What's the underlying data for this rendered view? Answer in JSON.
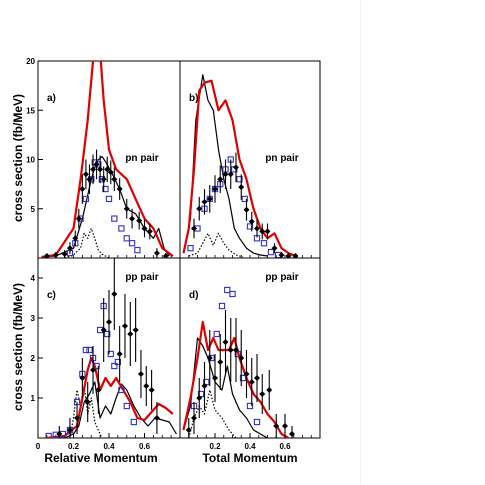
{
  "figure": {
    "y_axis_label": "cross section  (fb/MeV)",
    "x_axis_left_label": "Relative Momentum",
    "x_axis_right_label": "Total Momentum"
  },
  "chart_data": [
    {
      "id": "a",
      "type": "line",
      "panel_label": "a)",
      "annotation": "pn pair",
      "xlim": [
        0,
        0.8
      ],
      "ylim": [
        0,
        20
      ],
      "y_ticks": [
        5,
        10,
        15,
        20
      ],
      "x_ticks": [],
      "curves": {
        "red": {
          "x": [
            0.02,
            0.1,
            0.2,
            0.24,
            0.28,
            0.31,
            0.33,
            0.35,
            0.37,
            0.4,
            0.44,
            0.5,
            0.55,
            0.6,
            0.65,
            0.7,
            0.76
          ],
          "y": [
            0.1,
            0.3,
            3,
            8,
            14,
            20,
            21,
            21,
            16,
            11,
            9,
            8,
            6,
            4,
            3,
            1,
            0.2
          ]
        },
        "black": {
          "x": [
            0.02,
            0.1,
            0.2,
            0.25,
            0.3,
            0.33,
            0.36,
            0.38,
            0.42,
            0.46,
            0.5,
            0.55,
            0.6,
            0.65,
            0.68,
            0.71,
            0.74
          ],
          "y": [
            0.1,
            0.2,
            1,
            4,
            8,
            9.8,
            10.3,
            9.8,
            8.5,
            7,
            5,
            4.5,
            3,
            2,
            3,
            1,
            0.2
          ]
        },
        "dotted": {
          "x": [
            0.15,
            0.2,
            0.24,
            0.26,
            0.28,
            0.3,
            0.32,
            0.34,
            0.36,
            0.4
          ],
          "y": [
            0,
            0.3,
            1,
            2.5,
            2,
            3,
            2,
            0.8,
            0.4,
            0
          ]
        }
      },
      "filled_points": {
        "x": [
          0.05,
          0.1,
          0.15,
          0.18,
          0.21,
          0.23,
          0.25,
          0.27,
          0.29,
          0.31,
          0.33,
          0.35,
          0.37,
          0.39,
          0.41,
          0.43,
          0.46,
          0.5,
          0.53,
          0.57,
          0.6,
          0.63,
          0.67,
          0.72
        ],
        "y": [
          0.2,
          0.3,
          0.4,
          1,
          2,
          4,
          7,
          8.5,
          8,
          9,
          9.5,
          9,
          8,
          9,
          8.7,
          8,
          7,
          5,
          4,
          3.8,
          3,
          2.7,
          0.5,
          0.2
        ],
        "err": [
          0.2,
          0.3,
          0.4,
          0.6,
          0.8,
          1,
          1.5,
          1.5,
          1.5,
          1.5,
          1.5,
          1.4,
          1.3,
          1.3,
          1.2,
          1.2,
          1.1,
          1,
          1,
          0.9,
          0.9,
          0.8,
          0.5,
          0.3
        ]
      },
      "open_points": {
        "x": [
          0.18,
          0.21,
          0.24,
          0.27,
          0.3,
          0.32,
          0.34,
          0.36,
          0.38,
          0.4,
          0.43,
          0.47,
          0.5,
          0.53,
          0.56
        ],
        "y": [
          0.5,
          1.5,
          4,
          6,
          8,
          9.7,
          9.5,
          8,
          7,
          6,
          4,
          3,
          2,
          1.5,
          0.8
        ]
      }
    },
    {
      "id": "b",
      "type": "line",
      "panel_label": "b)",
      "annotation": "pn pair",
      "xlim": [
        0,
        0.8
      ],
      "ylim": [
        0,
        20
      ],
      "y_ticks": [],
      "x_ticks": [],
      "curves": {
        "red": {
          "x": [
            0.02,
            0.05,
            0.08,
            0.11,
            0.14,
            0.18,
            0.22,
            0.26,
            0.3,
            0.34,
            0.38,
            0.42,
            0.46,
            0.5,
            0.54,
            0.58,
            0.62,
            0.66
          ],
          "y": [
            0.5,
            3,
            9,
            17,
            17.8,
            18,
            15,
            16,
            14,
            10,
            8,
            5,
            3,
            2,
            2.5,
            1,
            0.5,
            0.2
          ]
        },
        "black": {
          "x": [
            0.02,
            0.06,
            0.09,
            0.13,
            0.16,
            0.19,
            0.22,
            0.25,
            0.28,
            0.31,
            0.34,
            0.38,
            0.42,
            0.46,
            0.5
          ],
          "y": [
            0.5,
            4,
            14,
            18.6,
            16,
            15,
            11,
            8,
            6,
            3,
            2,
            1,
            0.5,
            0.3,
            0.2
          ]
        },
        "dotted": {
          "x": [
            0.05,
            0.1,
            0.13,
            0.16,
            0.19,
            0.22,
            0.25,
            0.28,
            0.32,
            0.36
          ],
          "y": [
            0.2,
            0.5,
            1.5,
            2.5,
            1.3,
            2.5,
            1.5,
            0.8,
            0.3,
            0.1
          ]
        }
      },
      "filled_points": {
        "x": [
          0.08,
          0.11,
          0.14,
          0.17,
          0.2,
          0.23,
          0.26,
          0.29,
          0.32,
          0.35,
          0.38,
          0.41,
          0.44,
          0.47,
          0.5,
          0.54,
          0.58,
          0.62,
          0.66
        ],
        "y": [
          3,
          5,
          5.7,
          6,
          7,
          8,
          8.5,
          8.5,
          9.2,
          7.2,
          4.9,
          3.7,
          3,
          2.7,
          2.7,
          1,
          0.3,
          0.2,
          0.2
        ],
        "err": [
          1,
          1.2,
          1.3,
          1.4,
          1.4,
          1.4,
          1.5,
          1.5,
          1.5,
          1.3,
          1.1,
          1,
          0.9,
          0.8,
          0.8,
          0.5,
          0.3,
          0.2,
          0.2
        ]
      },
      "open_points": {
        "x": [
          0.06,
          0.1,
          0.14,
          0.17,
          0.2,
          0.23,
          0.26,
          0.29,
          0.31,
          0.34,
          0.37,
          0.4,
          0.44,
          0.48,
          0.52,
          0.56
        ],
        "y": [
          1,
          3,
          5,
          6,
          7,
          7.5,
          9,
          10,
          9,
          8,
          6,
          3.2,
          2,
          1.5,
          0.6,
          0.3
        ]
      }
    },
    {
      "id": "c",
      "type": "line",
      "panel_label": "c)",
      "annotation": "pp pair",
      "xlim": [
        0,
        0.8
      ],
      "ylim": [
        0,
        4.5
      ],
      "y_ticks": [
        1,
        2,
        3,
        4
      ],
      "x_ticks": [
        0,
        0.2,
        0.4,
        0.6
      ],
      "curves": {
        "red": {
          "x": [
            0.05,
            0.15,
            0.22,
            0.25,
            0.28,
            0.3,
            0.32,
            0.35,
            0.38,
            0.41,
            0.44,
            0.48,
            0.52,
            0.56,
            0.6,
            0.64,
            0.68,
            0.72,
            0.76
          ],
          "y": [
            0,
            0.05,
            0.3,
            1,
            1.7,
            2,
            1.8,
            1.2,
            1.5,
            1.3,
            1.5,
            1.2,
            0.9,
            0.5,
            0.45,
            0.65,
            0.85,
            0.75,
            0.6
          ]
        },
        "black": {
          "x": [
            0.15,
            0.2,
            0.23,
            0.26,
            0.29,
            0.32,
            0.35,
            0.38,
            0.41,
            0.44,
            0.47,
            0.5,
            0.54,
            0.58,
            0.62,
            0.66,
            0.7,
            0.74,
            0.78
          ],
          "y": [
            0,
            0.1,
            0.3,
            0.9,
            1.1,
            1.4,
            0.5,
            0.8,
            0.6,
            1,
            1.35,
            1.2,
            0.8,
            0.5,
            0.3,
            0.5,
            0.45,
            0.4,
            0.1
          ]
        },
        "dotted": {
          "x": [
            0.18,
            0.2,
            0.22,
            0.24,
            0.26,
            0.28,
            0.3,
            0.32,
            0.34,
            0.36
          ],
          "y": [
            0,
            0.5,
            1.2,
            0.8,
            1.3,
            0.6,
            1,
            0.4,
            0.2,
            0
          ]
        }
      },
      "filled_points": {
        "x": [
          0.12,
          0.18,
          0.22,
          0.25,
          0.28,
          0.31,
          0.34,
          0.37,
          0.4,
          0.43,
          0.46,
          0.49,
          0.52,
          0.55,
          0.58,
          0.61,
          0.64,
          0.67
        ],
        "y": [
          0.1,
          0.2,
          0.5,
          1.5,
          0.9,
          1.7,
          1.2,
          2.7,
          2.9,
          3.6,
          2.1,
          2.8,
          2.6,
          2.7,
          1.6,
          1.3,
          1.2,
          0.5
        ],
        "err": [
          0.2,
          0.3,
          0.4,
          0.5,
          0.5,
          0.6,
          0.6,
          0.8,
          0.8,
          0.9,
          0.7,
          0.8,
          0.8,
          0.8,
          0.6,
          0.5,
          0.5,
          0.4
        ]
      },
      "open_points": {
        "x": [
          0.06,
          0.1,
          0.14,
          0.18,
          0.22,
          0.25,
          0.27,
          0.29,
          0.31,
          0.33,
          0.35,
          0.37,
          0.39,
          0.41,
          0.43,
          0.45,
          0.47,
          0.5,
          0.54
        ],
        "y": [
          0.05,
          0.08,
          0.1,
          0.2,
          0.9,
          1.6,
          2.2,
          2.2,
          2,
          1.8,
          2.7,
          3.3,
          2.6,
          2.1,
          1.8,
          1.9,
          1.2,
          0.8,
          0.4
        ]
      }
    },
    {
      "id": "d",
      "type": "line",
      "panel_label": "d)",
      "annotation": "pp pair",
      "xlim": [
        0,
        0.8
      ],
      "ylim": [
        0,
        4.5
      ],
      "y_ticks": [],
      "x_ticks": [
        0.2,
        0.4,
        0.6
      ],
      "curves": {
        "red": {
          "x": [
            0.02,
            0.06,
            0.1,
            0.13,
            0.16,
            0.19,
            0.22,
            0.25,
            0.28,
            0.31,
            0.34,
            0.38,
            0.42,
            0.46,
            0.5,
            0.54,
            0.58,
            0.62
          ],
          "y": [
            0.2,
            1,
            2,
            2.9,
            2.2,
            2.5,
            2.2,
            2.2,
            2.2,
            2.5,
            2,
            1.5,
            1.1,
            0.9,
            0.6,
            0.4,
            0.1,
            0
          ]
        },
        "black": {
          "x": [
            0.02,
            0.06,
            0.1,
            0.13,
            0.16,
            0.2,
            0.24,
            0.27,
            0.3,
            0.34,
            0.38,
            0.42,
            0.46,
            0.5
          ],
          "y": [
            0.2,
            0.8,
            2.5,
            2.3,
            2,
            1.4,
            1.2,
            1.8,
            1.1,
            0.7,
            0.5,
            0.2,
            0.1,
            0
          ]
        },
        "dotted": {
          "x": [
            0.05,
            0.08,
            0.11,
            0.14,
            0.17,
            0.2,
            0.24,
            0.28,
            0.32
          ],
          "y": [
            0,
            0.5,
            0.8,
            0.6,
            1.2,
            0.7,
            0.5,
            0.2,
            0
          ]
        }
      },
      "filled_points": {
        "x": [
          0.05,
          0.08,
          0.11,
          0.14,
          0.17,
          0.2,
          0.23,
          0.26,
          0.29,
          0.32,
          0.35,
          0.38,
          0.41,
          0.44,
          0.47,
          0.51,
          0.55,
          0.6,
          0.64
        ],
        "y": [
          0.2,
          0.5,
          1,
          1.3,
          2,
          1.5,
          1.9,
          2.4,
          2.2,
          2.2,
          2,
          1.6,
          1.4,
          1.5,
          1.1,
          1.2,
          0.3,
          0.3,
          0.1
        ],
        "err": [
          0.3,
          0.4,
          0.5,
          0.6,
          0.7,
          0.6,
          0.7,
          0.8,
          0.8,
          0.8,
          0.7,
          0.6,
          0.6,
          0.6,
          0.5,
          0.5,
          0.3,
          0.3,
          0.2
        ]
      },
      "open_points": {
        "x": [
          0.08,
          0.12,
          0.15,
          0.18,
          0.21,
          0.24,
          0.27,
          0.3,
          0.33,
          0.36,
          0.4,
          0.44
        ],
        "y": [
          0.8,
          1.1,
          1.4,
          2,
          2.6,
          3.3,
          3.7,
          3.6,
          2.1,
          1.5,
          0.8,
          0.4
        ]
      }
    }
  ]
}
